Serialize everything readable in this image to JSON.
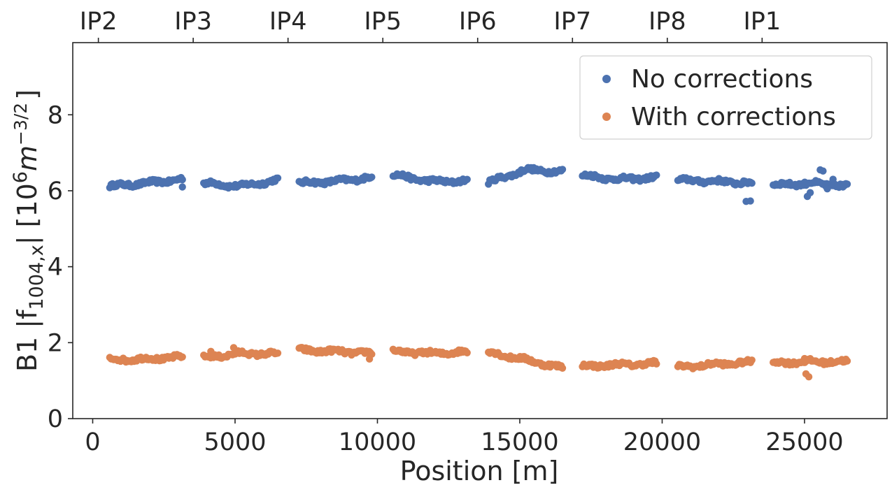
{
  "chart_data": {
    "type": "scatter",
    "xlabel": "Position [m]",
    "ylabel": {
      "prefix": "B1 |f",
      "subscript": "1004,x",
      "mid": "| [10",
      "sup1": "6",
      "unit": "m",
      "sup2": "−3/2",
      "suffix": "]"
    },
    "xlim": [
      -700,
      27900
    ],
    "ylim": [
      0,
      9.9
    ],
    "xticks": [
      0,
      5000,
      10000,
      15000,
      20000,
      25000
    ],
    "xtick_labels": [
      "0",
      "5000",
      "10000",
      "15000",
      "20000",
      "25000"
    ],
    "yticks": [
      0,
      2,
      4,
      6,
      8
    ],
    "ytick_labels": [
      "0",
      "2",
      "4",
      "6",
      "8"
    ],
    "top_axis": {
      "ticks": [
        200,
        3530,
        6860,
        10190,
        13520,
        16850,
        20180,
        23510
      ],
      "labels": [
        "IP2",
        "IP3",
        "IP4",
        "IP5",
        "IP6",
        "IP7",
        "IP8",
        "IP1"
      ]
    },
    "legend_position": "top-right",
    "grid": false,
    "series": [
      {
        "name": "No corrections",
        "color": "#4c72b0",
        "segments": [
          {
            "x0": 600,
            "x1": 3150,
            "y_start": 6.12,
            "y_mid": 6.2,
            "y_end": 6.3,
            "n": 55
          },
          {
            "x0": 3900,
            "x1": 6500,
            "y_start": 6.2,
            "y_mid": 6.12,
            "y_end": 6.28,
            "n": 55
          },
          {
            "x0": 7250,
            "x1": 9800,
            "y_start": 6.2,
            "y_mid": 6.25,
            "y_end": 6.35,
            "n": 55
          },
          {
            "x0": 10550,
            "x1": 13150,
            "y_start": 6.42,
            "y_mid": 6.25,
            "y_end": 6.25,
            "n": 55
          },
          {
            "x0": 13900,
            "x1": 16500,
            "y_start": 6.22,
            "y_mid": 6.55,
            "y_end": 6.5,
            "n": 55
          },
          {
            "x0": 17200,
            "x1": 19800,
            "y_start": 6.4,
            "y_mid": 6.3,
            "y_end": 6.35,
            "n": 55
          },
          {
            "x0": 20550,
            "x1": 23150,
            "y_start": 6.28,
            "y_mid": 6.25,
            "y_end": 6.2,
            "n": 55
          },
          {
            "x0": 23900,
            "x1": 26500,
            "y_start": 6.15,
            "y_mid": 6.2,
            "y_end": 6.12,
            "n": 55
          }
        ],
        "extra_points": [
          [
            3150,
            6.1
          ],
          [
            22950,
            5.72
          ],
          [
            23100,
            5.73
          ],
          [
            25100,
            5.85
          ],
          [
            25200,
            5.95
          ],
          [
            25550,
            6.55
          ],
          [
            25650,
            6.52
          ],
          [
            25800,
            6.05
          ],
          [
            26000,
            6.3
          ],
          [
            26350,
            6.1
          ]
        ]
      },
      {
        "name": "With corrections",
        "color": "#dd8452",
        "segments": [
          {
            "x0": 600,
            "x1": 3150,
            "y_start": 1.55,
            "y_mid": 1.57,
            "y_end": 1.62,
            "n": 55
          },
          {
            "x0": 3900,
            "x1": 6500,
            "y_start": 1.6,
            "y_mid": 1.72,
            "y_end": 1.7,
            "n": 55
          },
          {
            "x0": 7250,
            "x1": 9800,
            "y_start": 1.8,
            "y_mid": 1.77,
            "y_end": 1.72,
            "n": 55
          },
          {
            "x0": 10550,
            "x1": 13150,
            "y_start": 1.77,
            "y_mid": 1.72,
            "y_end": 1.75,
            "n": 55
          },
          {
            "x0": 13900,
            "x1": 16500,
            "y_start": 1.75,
            "y_mid": 1.55,
            "y_end": 1.33,
            "n": 55
          },
          {
            "x0": 17200,
            "x1": 19800,
            "y_start": 1.38,
            "y_mid": 1.42,
            "y_end": 1.45,
            "n": 55
          },
          {
            "x0": 20550,
            "x1": 23150,
            "y_start": 1.35,
            "y_mid": 1.43,
            "y_end": 1.48,
            "n": 55
          },
          {
            "x0": 23900,
            "x1": 26500,
            "y_start": 1.47,
            "y_mid": 1.5,
            "y_end": 1.5,
            "n": 55
          }
        ],
        "extra_points": [
          [
            4150,
            1.77
          ],
          [
            4950,
            1.87
          ],
          [
            9720,
            1.57
          ],
          [
            19700,
            1.53
          ],
          [
            25050,
            1.18
          ],
          [
            25150,
            1.1
          ],
          [
            25000,
            1.58
          ]
        ]
      }
    ]
  }
}
